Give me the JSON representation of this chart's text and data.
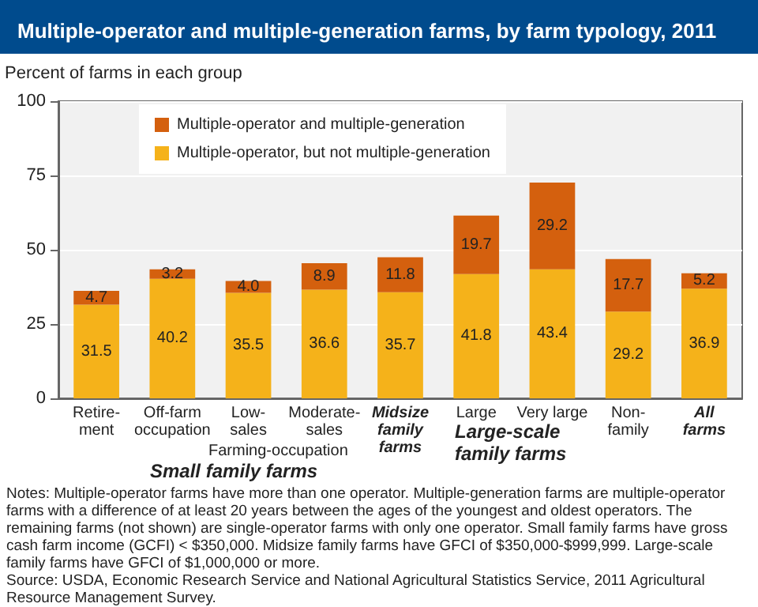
{
  "chart_data": {
    "type": "bar",
    "title": "Multiple-operator and multiple-generation farms, by farm typology, 2011",
    "ylabel": "Percent of farms in each group",
    "categories": [
      "Retire-\nment",
      "Off-farm\noccupation",
      "Low-\nsales",
      "Moderate-\nsales",
      "Midsize\nfamily\nfarms",
      "Large",
      "Very large",
      "Non-\nfamily",
      "All\nfarms"
    ],
    "series": [
      {
        "name": "Multiple-operator, but not multiple-generation",
        "color": "#f5b21a",
        "values": [
          31.5,
          40.2,
          35.5,
          36.6,
          35.7,
          41.8,
          43.4,
          29.2,
          36.9
        ],
        "value_labels": [
          "31.5",
          "40.2",
          "35.5",
          "36.6",
          "35.7",
          "41.8",
          "43.4",
          "29.2",
          "36.9"
        ]
      },
      {
        "name": "Multiple-operator and multiple-generation",
        "color": "#d4600e",
        "values": [
          4.7,
          3.2,
          4.0,
          8.9,
          11.8,
          19.7,
          29.2,
          17.7,
          5.2
        ],
        "value_labels": [
          "4.7",
          "3.2",
          "4.0",
          "8.9",
          "11.8",
          "19.7",
          "29.2",
          "17.7",
          "5.2"
        ]
      }
    ],
    "stacked": true,
    "ylim": [
      0,
      100
    ],
    "yticks": [
      0,
      25,
      50,
      75,
      100
    ],
    "grid": "y",
    "legend": "top left",
    "annotations": [
      "Farming-occupation",
      "Small family farms",
      "Large-scale family farms",
      "Notes: Multiple-operator farms have more than one operator. Multiple-generation farms are multiple-operator farms with a difference of at least 20 years between the ages of the youngest and oldest operators. The remaining farms (not shown) are single-operator farms with only one operator. Small family farms have gross cash farm income (GCFI) < $350,000. Midsize family farms have GFCI of $350,000-$999,999. Large-scale family farms have GFCI of $1,000,000 or more.",
      "Source: USDA, Economic Research Service and National Agricultural Statistics Service, 2011 Agricultural Resource Management Survey."
    ]
  }
}
